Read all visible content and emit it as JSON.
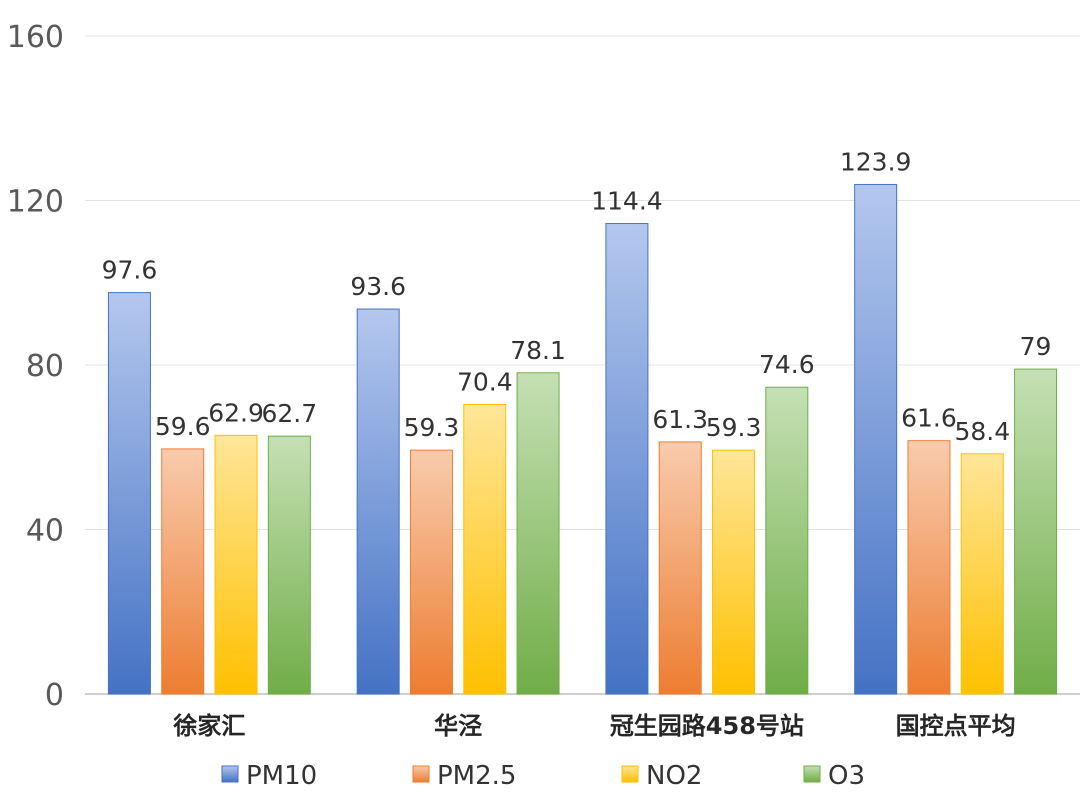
{
  "chart_data": {
    "type": "bar",
    "categories": [
      "徐家汇",
      "华泾",
      "冠生园路458号站",
      "国控点平均"
    ],
    "series": [
      {
        "name": "PM10",
        "values": [
          97.6,
          93.6,
          114.4,
          123.9
        ],
        "color_top": "#b4c7ee",
        "color_bottom": "#4472c4"
      },
      {
        "name": "PM2.5",
        "values": [
          59.6,
          59.3,
          61.3,
          61.6
        ],
        "color_top": "#f8cbad",
        "color_bottom": "#ed7d31"
      },
      {
        "name": "NO2",
        "values": [
          62.9,
          70.4,
          59.3,
          58.4
        ],
        "color_top": "#ffe699",
        "color_bottom": "#ffc000"
      },
      {
        "name": "O3",
        "values": [
          62.7,
          78.1,
          74.6,
          79
        ],
        "color_top": "#c5e0b4",
        "color_bottom": "#70ad47"
      }
    ],
    "yticks": [
      "0",
      "40",
      "80",
      "120",
      "160"
    ],
    "ylim": [
      0,
      160
    ],
    "grid": true,
    "legend": "bottom",
    "title": "",
    "xlabel": "",
    "ylabel": ""
  }
}
